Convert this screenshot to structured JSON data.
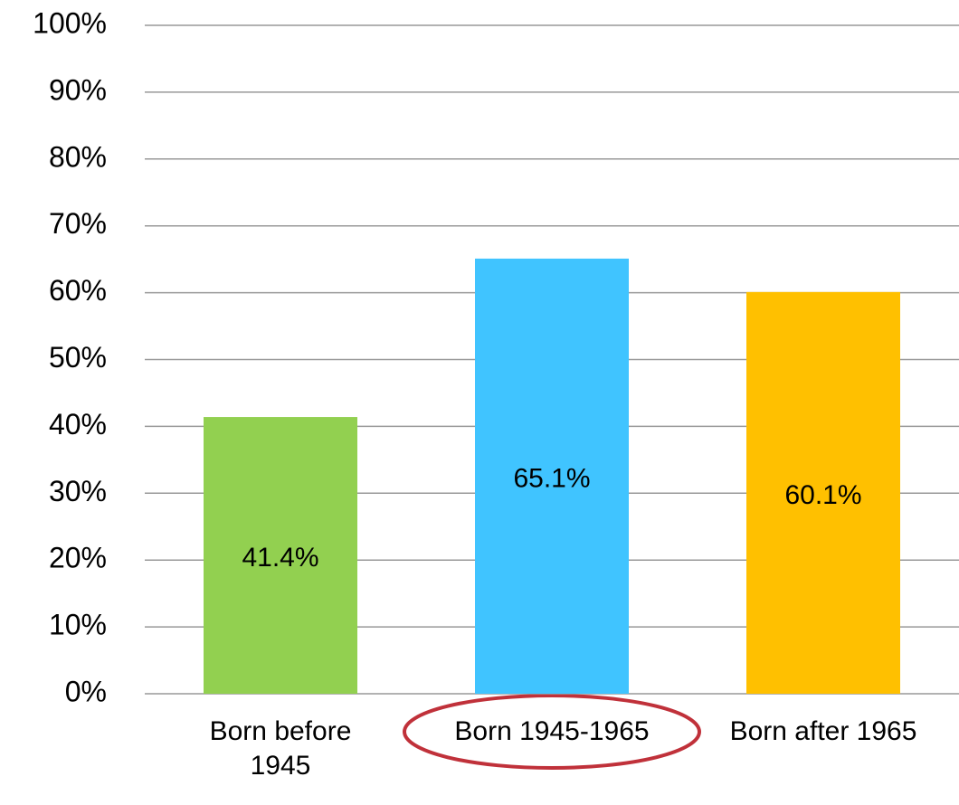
{
  "chart_data": {
    "type": "bar",
    "categories": [
      "Born before 1945",
      "Born 1945-1965",
      "Born after 1965"
    ],
    "values": [
      41.4,
      65.1,
      60.1
    ],
    "value_labels": [
      "41.4%",
      "65.1%",
      "60.1%"
    ],
    "colors": [
      "#92d050",
      "#40c4ff",
      "#ffc000"
    ],
    "ylim": [
      0,
      100
    ],
    "yticks": [
      {
        "value": 0,
        "label": "0%"
      },
      {
        "value": 10,
        "label": "10%"
      },
      {
        "value": 20,
        "label": "20%"
      },
      {
        "value": 30,
        "label": "30%"
      },
      {
        "value": 40,
        "label": "40%"
      },
      {
        "value": 50,
        "label": "50%"
      },
      {
        "value": 60,
        "label": "60%"
      },
      {
        "value": 70,
        "label": "70%"
      },
      {
        "value": 80,
        "label": "80%"
      },
      {
        "value": 90,
        "label": "90%"
      },
      {
        "value": 100,
        "label": "100%"
      }
    ],
    "grid": true
  }
}
